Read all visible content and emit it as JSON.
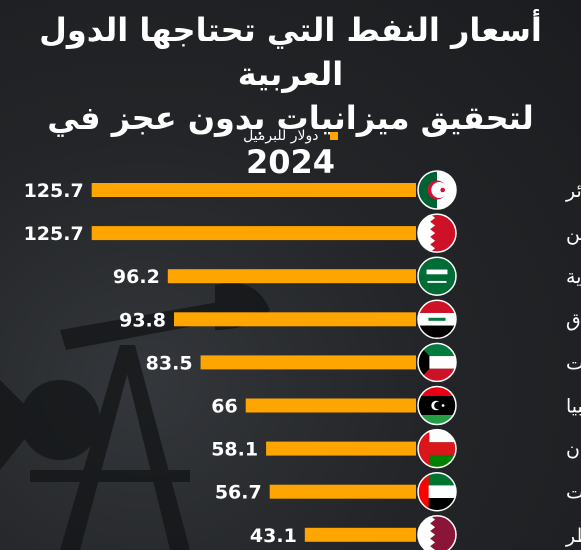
{
  "title_lines": [
    "أسعار النفط التي تحتاجها الدول العربية",
    "لتحقيق ميزانيات بدون عجز في 2024"
  ],
  "colors": {
    "bar": "#ffa500",
    "background": "#1d1f22",
    "text": "#ffffff"
  },
  "chart_data": {
    "type": "bar",
    "orientation": "horizontal",
    "categories": [
      "الجزائر",
      "البحرين",
      "السعودية",
      "العراق",
      "الكويت",
      "ليبيا",
      "عُمان",
      "الإمارات",
      "قطر"
    ],
    "series": [
      {
        "name": "دولار للبرميل",
        "values": [
          125.7,
          125.7,
          96.2,
          93.8,
          83.5,
          66,
          58.1,
          56.7,
          43.1
        ]
      }
    ],
    "data_labels": [
      "125.7",
      "125.7",
      "96.2",
      "93.8",
      "83.5",
      "66",
      "58.1",
      "56.7",
      "43.1"
    ],
    "flag_icons": [
      "algeria-flag-icon",
      "bahrain-flag-icon",
      "saudi-arabia-flag-icon",
      "iraq-flag-icon",
      "kuwait-flag-icon",
      "libya-flag-icon",
      "oman-flag-icon",
      "uae-flag-icon",
      "qatar-flag-icon"
    ],
    "legend_position": "top-center",
    "grid": false
  }
}
